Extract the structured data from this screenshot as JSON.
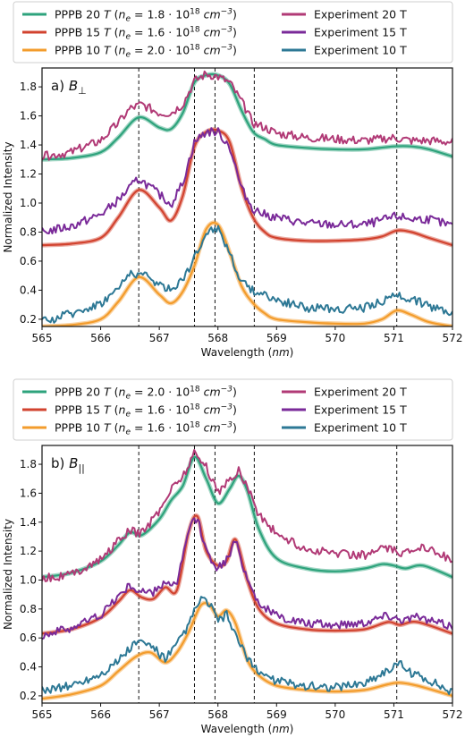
{
  "chart_data": [
    {
      "type": "line",
      "panel_label": "a)",
      "field_symbol": "B",
      "field_subscript": "⊥",
      "xlabel": "Wavelength",
      "xlabel_unit": "nm",
      "ylabel": "Normalized Intensity",
      "xlim": [
        565,
        572
      ],
      "ylim": [
        0.15,
        1.93
      ],
      "xticks": [
        565,
        566,
        567,
        568,
        569,
        570,
        571,
        572
      ],
      "yticks": [
        0.2,
        0.4,
        0.6,
        0.8,
        1.0,
        1.2,
        1.4,
        1.6,
        1.8
      ],
      "ytick_labels": [
        "0.2",
        "0.4",
        "0.6",
        "0.8",
        "1.0",
        "1.2",
        "1.4",
        "1.6",
        "1.8"
      ],
      "vlines": [
        566.65,
        567.6,
        567.95,
        568.62,
        571.05
      ],
      "grid": false,
      "legend_placement": "top, outside",
      "legend": [
        {
          "label": "PPPB 20 T (nₑ = 1.8·10¹⁸ cm⁻³)",
          "color": "#2ea37c"
        },
        {
          "label": "PPPB 15 T (nₑ = 1.6·10¹⁸ cm⁻³)",
          "color": "#d2432f"
        },
        {
          "label": "PPPB 10 T (nₑ = 2.0·10¹⁸ cm⁻³)",
          "color": "#f39c2c"
        },
        {
          "label": "Experiment 20 T",
          "color": "#b13a76"
        },
        {
          "label": "Experiment 15 T",
          "color": "#7a2a99"
        },
        {
          "label": "Experiment 10 T",
          "color": "#2d7895"
        }
      ],
      "series": [
        {
          "name": "PPPB 20 T",
          "color": "#2ea37c",
          "kind": "model",
          "x": [
            565.0,
            565.5,
            566.0,
            566.3,
            566.65,
            567.0,
            567.2,
            567.4,
            567.6,
            567.8,
            568.0,
            568.2,
            568.4,
            568.6,
            568.8,
            569.0,
            569.5,
            570.0,
            570.5,
            571.0,
            571.3,
            571.6,
            572.0
          ],
          "y": [
            1.3,
            1.31,
            1.35,
            1.45,
            1.59,
            1.52,
            1.51,
            1.62,
            1.83,
            1.88,
            1.88,
            1.82,
            1.64,
            1.49,
            1.44,
            1.4,
            1.38,
            1.37,
            1.37,
            1.39,
            1.39,
            1.37,
            1.32
          ]
        },
        {
          "name": "PPPB 15 T",
          "color": "#d2432f",
          "kind": "model",
          "x": [
            565.0,
            565.5,
            566.0,
            566.3,
            566.65,
            567.0,
            567.2,
            567.4,
            567.6,
            567.8,
            568.0,
            568.2,
            568.4,
            568.6,
            568.8,
            569.0,
            569.5,
            570.0,
            570.5,
            570.8,
            571.05,
            571.3,
            571.6,
            572.0
          ],
          "y": [
            0.71,
            0.72,
            0.76,
            0.9,
            1.09,
            0.97,
            0.88,
            1.05,
            1.39,
            1.49,
            1.5,
            1.42,
            1.11,
            0.9,
            0.8,
            0.76,
            0.74,
            0.74,
            0.75,
            0.77,
            0.81,
            0.8,
            0.76,
            0.71
          ]
        },
        {
          "name": "PPPB 10 T",
          "color": "#f39c2c",
          "kind": "model",
          "x": [
            565.0,
            565.5,
            566.0,
            566.3,
            566.65,
            567.0,
            567.2,
            567.4,
            567.6,
            567.8,
            568.0,
            568.2,
            568.4,
            568.6,
            568.8,
            569.0,
            569.5,
            570.0,
            570.5,
            570.8,
            571.05,
            571.3,
            571.6,
            572.0
          ],
          "y": [
            0.15,
            0.16,
            0.2,
            0.32,
            0.49,
            0.37,
            0.31,
            0.39,
            0.57,
            0.82,
            0.85,
            0.66,
            0.43,
            0.31,
            0.24,
            0.2,
            0.18,
            0.17,
            0.17,
            0.2,
            0.26,
            0.23,
            0.18,
            0.15
          ]
        },
        {
          "name": "Experiment 20 T",
          "color": "#b13a76",
          "kind": "experiment",
          "x": [
            565.0,
            565.5,
            566.0,
            566.3,
            566.5,
            566.7,
            567.0,
            567.2,
            567.4,
            567.6,
            567.8,
            568.0,
            568.2,
            568.4,
            568.6,
            568.8,
            569.0,
            569.5,
            570.0,
            570.5,
            571.0,
            571.3,
            571.6,
            572.0
          ],
          "y": [
            1.32,
            1.35,
            1.43,
            1.55,
            1.65,
            1.68,
            1.62,
            1.62,
            1.68,
            1.84,
            1.89,
            1.87,
            1.83,
            1.7,
            1.55,
            1.52,
            1.48,
            1.45,
            1.44,
            1.43,
            1.45,
            1.43,
            1.43,
            1.42
          ]
        },
        {
          "name": "Experiment 15 T",
          "color": "#7a2a99",
          "kind": "experiment",
          "x": [
            565.0,
            565.5,
            566.0,
            566.3,
            566.65,
            567.0,
            567.2,
            567.4,
            567.6,
            567.8,
            568.0,
            568.2,
            568.4,
            568.6,
            568.8,
            569.0,
            569.5,
            570.0,
            570.5,
            570.8,
            571.05,
            571.3,
            571.6,
            572.0
          ],
          "y": [
            0.8,
            0.84,
            0.92,
            1.02,
            1.17,
            1.06,
            0.99,
            1.14,
            1.42,
            1.49,
            1.49,
            1.39,
            1.1,
            0.96,
            0.92,
            0.9,
            0.86,
            0.85,
            0.85,
            0.88,
            0.91,
            0.89,
            0.89,
            0.84
          ]
        },
        {
          "name": "Experiment 10 T",
          "color": "#2d7895",
          "kind": "experiment",
          "x": [
            565.0,
            565.5,
            566.0,
            566.3,
            566.5,
            566.7,
            567.0,
            567.2,
            567.4,
            567.6,
            567.8,
            568.0,
            568.2,
            568.4,
            568.6,
            568.8,
            569.0,
            569.5,
            570.0,
            570.5,
            570.8,
            571.05,
            571.3,
            571.6,
            572.0
          ],
          "y": [
            0.18,
            0.24,
            0.31,
            0.41,
            0.52,
            0.51,
            0.44,
            0.4,
            0.48,
            0.62,
            0.8,
            0.83,
            0.66,
            0.45,
            0.4,
            0.37,
            0.33,
            0.28,
            0.27,
            0.28,
            0.32,
            0.37,
            0.34,
            0.29,
            0.25
          ]
        }
      ]
    },
    {
      "type": "line",
      "panel_label": "b)",
      "field_symbol": "B",
      "field_subscript": "||",
      "xlabel": "Wavelength",
      "xlabel_unit": "nm",
      "ylabel": "Normalized Intensity",
      "xlim": [
        565,
        572
      ],
      "ylim": [
        0.15,
        1.93
      ],
      "xticks": [
        565,
        566,
        567,
        568,
        569,
        570,
        571,
        572
      ],
      "yticks": [
        0.2,
        0.4,
        0.6,
        0.8,
        1.0,
        1.2,
        1.4,
        1.6,
        1.8
      ],
      "ytick_labels": [
        "0.2",
        "0.4",
        "0.6",
        "0.8",
        "1.0",
        "1.2",
        "1.4",
        "1.6",
        "1.8"
      ],
      "vlines": [
        566.65,
        567.6,
        567.95,
        568.62,
        571.05
      ],
      "grid": false,
      "legend_placement": "top, outside",
      "legend": [
        {
          "label": "PPPB 20 T (nₑ = 2.0·10¹⁸ cm⁻³)",
          "color": "#2ea37c"
        },
        {
          "label": "PPPB 15 T (nₑ = 1.6·10¹⁸ cm⁻³)",
          "color": "#d2432f"
        },
        {
          "label": "PPPB 10 T (nₑ = 1.6·10¹⁸ cm⁻³)",
          "color": "#f39c2c"
        },
        {
          "label": "Experiment 20 T",
          "color": "#b13a76"
        },
        {
          "label": "Experiment 15 T",
          "color": "#7a2a99"
        },
        {
          "label": "Experiment 10 T",
          "color": "#2d7895"
        }
      ],
      "series": [
        {
          "name": "PPPB 20 T",
          "color": "#2ea37c",
          "kind": "model",
          "x": [
            565.0,
            565.5,
            566.0,
            566.3,
            566.5,
            566.7,
            567.0,
            567.2,
            567.4,
            567.6,
            567.8,
            568.0,
            568.2,
            568.35,
            568.5,
            568.7,
            569.0,
            569.5,
            570.0,
            570.5,
            570.8,
            571.0,
            571.2,
            571.5,
            572.0
          ],
          "y": [
            1.02,
            1.05,
            1.13,
            1.24,
            1.33,
            1.31,
            1.42,
            1.55,
            1.65,
            1.85,
            1.7,
            1.53,
            1.63,
            1.72,
            1.62,
            1.35,
            1.15,
            1.08,
            1.06,
            1.08,
            1.11,
            1.1,
            1.08,
            1.1,
            1.02
          ]
        },
        {
          "name": "PPPB 15 T",
          "color": "#d2432f",
          "kind": "model",
          "x": [
            565.0,
            565.5,
            566.0,
            566.3,
            566.5,
            566.7,
            566.9,
            567.1,
            567.3,
            567.5,
            567.65,
            567.8,
            568.0,
            568.15,
            568.3,
            568.5,
            568.7,
            569.0,
            569.5,
            570.0,
            570.5,
            570.9,
            571.1,
            571.4,
            572.0
          ],
          "y": [
            0.63,
            0.66,
            0.74,
            0.85,
            0.93,
            0.88,
            0.87,
            0.95,
            0.93,
            1.33,
            1.44,
            1.2,
            1.1,
            1.13,
            1.28,
            1.0,
            0.8,
            0.7,
            0.66,
            0.65,
            0.66,
            0.71,
            0.69,
            0.71,
            0.63
          ]
        },
        {
          "name": "PPPB 10 T",
          "color": "#f39c2c",
          "kind": "model",
          "x": [
            565.0,
            565.5,
            566.0,
            566.3,
            566.6,
            566.85,
            567.1,
            567.3,
            567.5,
            567.7,
            567.85,
            568.0,
            568.15,
            568.3,
            568.5,
            568.7,
            569.0,
            569.5,
            570.0,
            570.5,
            570.9,
            571.1,
            571.4,
            572.0
          ],
          "y": [
            0.18,
            0.21,
            0.27,
            0.37,
            0.47,
            0.5,
            0.43,
            0.5,
            0.64,
            0.82,
            0.83,
            0.75,
            0.79,
            0.7,
            0.45,
            0.34,
            0.27,
            0.24,
            0.23,
            0.24,
            0.28,
            0.29,
            0.27,
            0.2
          ]
        },
        {
          "name": "Experiment 20 T",
          "color": "#b13a76",
          "kind": "experiment",
          "x": [
            565.0,
            565.5,
            566.0,
            566.3,
            566.5,
            566.7,
            567.0,
            567.2,
            567.4,
            567.6,
            567.8,
            568.0,
            568.2,
            568.35,
            568.5,
            568.7,
            569.0,
            569.5,
            570.0,
            570.5,
            570.8,
            571.0,
            571.2,
            571.5,
            572.0
          ],
          "y": [
            1.01,
            1.04,
            1.14,
            1.27,
            1.34,
            1.32,
            1.48,
            1.63,
            1.72,
            1.88,
            1.78,
            1.61,
            1.69,
            1.76,
            1.65,
            1.45,
            1.32,
            1.21,
            1.19,
            1.17,
            1.22,
            1.2,
            1.18,
            1.24,
            1.14
          ]
        },
        {
          "name": "Experiment 15 T",
          "color": "#7a2a99",
          "kind": "experiment",
          "x": [
            565.0,
            565.5,
            566.0,
            566.3,
            566.5,
            566.7,
            566.9,
            567.1,
            567.3,
            567.5,
            567.65,
            567.8,
            568.0,
            568.15,
            568.3,
            568.5,
            568.7,
            569.0,
            569.5,
            570.0,
            570.5,
            570.9,
            571.1,
            571.4,
            572.0
          ],
          "y": [
            0.62,
            0.67,
            0.76,
            0.89,
            0.96,
            0.92,
            0.91,
            0.99,
            0.96,
            1.35,
            1.43,
            1.2,
            1.08,
            1.14,
            1.27,
            1.01,
            0.84,
            0.75,
            0.7,
            0.69,
            0.71,
            0.76,
            0.73,
            0.74,
            0.68
          ]
        },
        {
          "name": "Experiment 10 T",
          "color": "#2d7895",
          "kind": "experiment",
          "x": [
            565.0,
            565.5,
            566.0,
            566.3,
            566.6,
            566.85,
            567.1,
            567.3,
            567.5,
            567.7,
            567.85,
            568.0,
            568.15,
            568.3,
            568.5,
            568.7,
            569.0,
            569.5,
            570.0,
            570.5,
            570.9,
            571.1,
            571.3,
            571.6,
            572.0
          ],
          "y": [
            0.24,
            0.27,
            0.35,
            0.44,
            0.57,
            0.55,
            0.45,
            0.55,
            0.69,
            0.87,
            0.84,
            0.72,
            0.76,
            0.62,
            0.45,
            0.37,
            0.3,
            0.27,
            0.26,
            0.29,
            0.38,
            0.42,
            0.36,
            0.31,
            0.22
          ]
        }
      ]
    }
  ]
}
